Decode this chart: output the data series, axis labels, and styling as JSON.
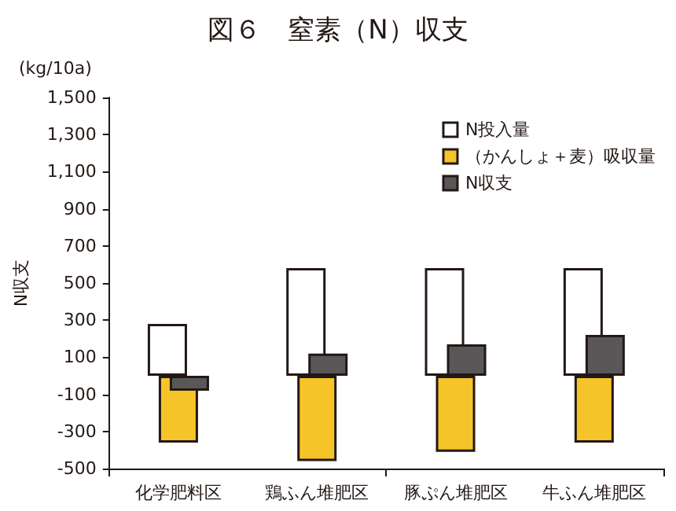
{
  "chart_data": {
    "type": "bar",
    "title": "図６　窒素（N）収支",
    "ylabel": "N収支",
    "annotations": [
      "(kg/10a)"
    ],
    "categories": [
      "化学肥料区",
      "鶏ふん堆肥区",
      "豚ぷん堆肥区",
      "牛ふん堆肥区"
    ],
    "series": [
      {
        "name": "N投入量",
        "color": "#ffffff",
        "values": [
          280,
          580,
          580,
          580
        ]
      },
      {
        "name": "（かんしょ＋麦）吸収量",
        "color": "#f5c428",
        "values": [
          -360,
          -460,
          -410,
          -360
        ]
      },
      {
        "name": "N収支",
        "color": "#595757",
        "values": [
          -80,
          120,
          170,
          220
        ]
      }
    ],
    "ylim": [
      -500,
      1500
    ],
    "yticks": [
      -500,
      -300,
      -100,
      100,
      300,
      500,
      700,
      900,
      {
        "value": 1100,
        "label": "1,100"
      },
      {
        "value": 1300,
        "label": "1,300"
      },
      {
        "value": 1500,
        "label": "1,500"
      }
    ],
    "grid": false,
    "legend": "top right"
  }
}
